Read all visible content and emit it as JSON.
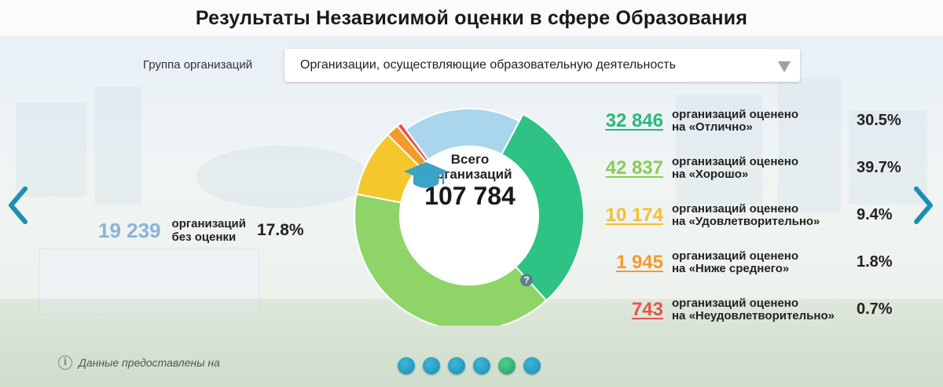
{
  "header": {
    "title": "Результаты Независимой оценки в сфере Образования"
  },
  "filter": {
    "label": "Группа организаций",
    "selected": "Организации, осуществляющие образовательную деятельность"
  },
  "left_stat": {
    "value": "19 239",
    "desc_line1": "организаций",
    "desc_line2": "без оценки",
    "percent": "17.8%",
    "color": "#8ab4d6"
  },
  "center": {
    "line1": "Всего",
    "line2": "организаций",
    "total": "107 784",
    "help_glyph": "?"
  },
  "rows": [
    {
      "value": "32 846",
      "desc_line1": "организаций оценено",
      "desc_line2": "на «Отлично»",
      "percent": "30.5%",
      "color": "#27b979"
    },
    {
      "value": "42 837",
      "desc_line1": "организаций оценено",
      "desc_line2": "на «Хорошо»",
      "percent": "39.7%",
      "color": "#86cd55"
    },
    {
      "value": "10 174",
      "desc_line1": "организаций оценено",
      "desc_line2": "на «Удовлетворительно»",
      "percent": "9.4%",
      "color": "#f2c12e"
    },
    {
      "value": "1 945",
      "desc_line1": "организаций оценено",
      "desc_line2": "на «Ниже среднего»",
      "percent": "1.8%",
      "color": "#f29a2e"
    },
    {
      "value": "743",
      "desc_line1": "организаций оценено",
      "desc_line2": "на «Неудовлетворительно»",
      "percent": "0.7%",
      "color": "#e8534a"
    }
  ],
  "chart_data": {
    "type": "pie",
    "total": 107784,
    "slices": [
      {
        "label": "Отлично",
        "value": 32846,
        "percent": 30.5,
        "color": "#2ec384"
      },
      {
        "label": "Хорошо",
        "value": 42837,
        "percent": 39.7,
        "color": "#8fd466"
      },
      {
        "label": "Удовлетворительно",
        "value": 10174,
        "percent": 9.4,
        "color": "#f4c82c"
      },
      {
        "label": "Ниже среднего",
        "value": 1945,
        "percent": 1.8,
        "color": "#f39a2a"
      },
      {
        "label": "Неудовлетворительно",
        "value": 743,
        "percent": 0.7,
        "color": "#e8534a"
      },
      {
        "label": "без оценки",
        "value": 19239,
        "percent": 17.8,
        "color": "#a9d6ec"
      }
    ]
  },
  "footer": {
    "info_glyph": "i",
    "note": "Данные предоставлены на"
  },
  "pagination": {
    "count": 6,
    "active_index": 4
  },
  "icons": {
    "prev": "chevron-left-icon",
    "next": "chevron-right-icon",
    "cap": "graduation-cap-icon",
    "help": "question-icon",
    "info": "info-icon",
    "dropdown": "dropdown-arrow-icon"
  }
}
